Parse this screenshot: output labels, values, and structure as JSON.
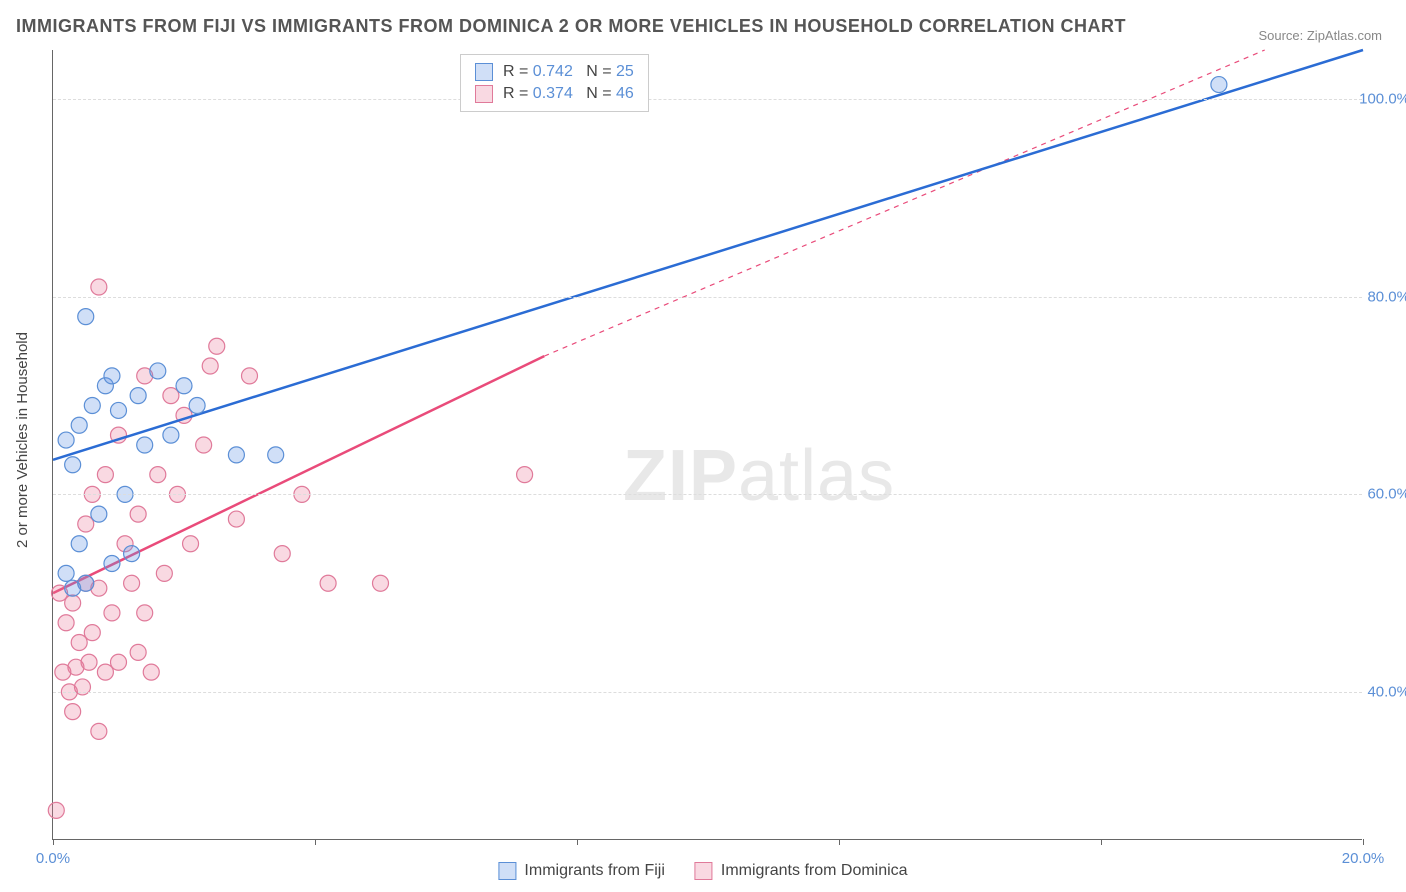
{
  "title": "IMMIGRANTS FROM FIJI VS IMMIGRANTS FROM DOMINICA 2 OR MORE VEHICLES IN HOUSEHOLD CORRELATION CHART",
  "source": "Source: ZipAtlas.com",
  "y_axis_label": "2 or more Vehicles in Household",
  "watermark_strong": "ZIP",
  "watermark_light": "atlas",
  "chart": {
    "type": "scatter-correlation",
    "background_color": "#ffffff",
    "grid_color": "#dddddd",
    "axis_color": "#666666",
    "label_color": "#5b8fd6",
    "text_color": "#444444",
    "title_fontsize": 18,
    "label_fontsize": 15,
    "x_range": [
      0,
      20
    ],
    "y_range": [
      25,
      105
    ],
    "y_ticks": [
      40,
      60,
      80,
      100
    ],
    "y_tick_labels": [
      "40.0%",
      "60.0%",
      "80.0%",
      "100.0%"
    ],
    "x_ticks": [
      0,
      4,
      8,
      12,
      16,
      20
    ],
    "x_tick_labels": [
      "0.0%",
      "",
      "",
      "",
      "",
      "20.0%"
    ],
    "marker_radius": 8,
    "marker_stroke_width": 1.2,
    "line_width": 2.5,
    "series": [
      {
        "name": "Immigrants from Fiji",
        "color_fill": "rgba(100,150,230,0.30)",
        "color_stroke": "#5b8fd6",
        "line_color": "#2b6cd4",
        "R": "0.742",
        "N": "25",
        "points": [
          [
            0.2,
            65.5
          ],
          [
            0.4,
            67
          ],
          [
            0.6,
            69
          ],
          [
            0.8,
            71
          ],
          [
            1.0,
            68.5
          ],
          [
            0.5,
            78
          ],
          [
            0.3,
            63
          ],
          [
            0.9,
            72
          ],
          [
            1.3,
            70
          ],
          [
            1.6,
            72.5
          ],
          [
            1.1,
            60
          ],
          [
            1.4,
            65
          ],
          [
            2.0,
            71
          ],
          [
            2.2,
            69
          ],
          [
            1.8,
            66
          ],
          [
            0.7,
            58
          ],
          [
            0.4,
            55
          ],
          [
            2.8,
            64
          ],
          [
            3.4,
            64
          ],
          [
            1.2,
            54
          ],
          [
            0.2,
            52
          ],
          [
            0.5,
            51
          ],
          [
            0.3,
            50.5
          ],
          [
            0.9,
            53
          ],
          [
            17.8,
            101.5
          ]
        ],
        "trend": {
          "x1": 0,
          "y1": 63.5,
          "x2": 20,
          "y2": 105
        },
        "trend_dash": null
      },
      {
        "name": "Immigrants from Dominica",
        "color_fill": "rgba(235,120,150,0.28)",
        "color_stroke": "#e07a9a",
        "line_color": "#e94b7a",
        "R": "0.374",
        "N": "46",
        "points": [
          [
            0.1,
            50
          ],
          [
            0.3,
            49
          ],
          [
            0.5,
            51
          ],
          [
            0.7,
            50.5
          ],
          [
            0.2,
            47
          ],
          [
            0.4,
            45
          ],
          [
            0.6,
            46
          ],
          [
            0.15,
            42
          ],
          [
            0.35,
            42.5
          ],
          [
            0.55,
            43
          ],
          [
            0.8,
            42
          ],
          [
            1.0,
            43
          ],
          [
            1.5,
            42
          ],
          [
            0.25,
            40
          ],
          [
            0.45,
            40.5
          ],
          [
            0.3,
            38
          ],
          [
            0.7,
            36
          ],
          [
            0.05,
            28
          ],
          [
            0.9,
            48
          ],
          [
            1.2,
            51
          ],
          [
            1.4,
            48
          ],
          [
            1.7,
            52
          ],
          [
            1.1,
            55
          ],
          [
            1.3,
            58
          ],
          [
            1.6,
            62
          ],
          [
            1.9,
            60
          ],
          [
            2.1,
            55
          ],
          [
            2.3,
            65
          ],
          [
            2.0,
            68
          ],
          [
            2.5,
            75
          ],
          [
            0.7,
            81
          ],
          [
            1.8,
            70
          ],
          [
            1.4,
            72
          ],
          [
            1.0,
            66
          ],
          [
            0.8,
            62
          ],
          [
            0.6,
            60
          ],
          [
            0.5,
            57
          ],
          [
            2.8,
            57.5
          ],
          [
            3.5,
            54
          ],
          [
            4.2,
            51
          ],
          [
            5.0,
            51
          ],
          [
            3.0,
            72
          ],
          [
            2.4,
            73
          ],
          [
            3.8,
            60
          ],
          [
            7.2,
            62
          ],
          [
            1.3,
            44
          ]
        ],
        "trend": {
          "x1": 0,
          "y1": 50,
          "x2": 7.5,
          "y2": 74
        },
        "trend_dash": {
          "x1": 7.5,
          "y1": 74,
          "x2": 18.5,
          "y2": 105
        }
      }
    ]
  },
  "legend_box": {
    "r_label": "R =",
    "n_label": "N ="
  },
  "bottom_legend_items": [
    "Immigrants from Fiji",
    "Immigrants from Dominica"
  ]
}
